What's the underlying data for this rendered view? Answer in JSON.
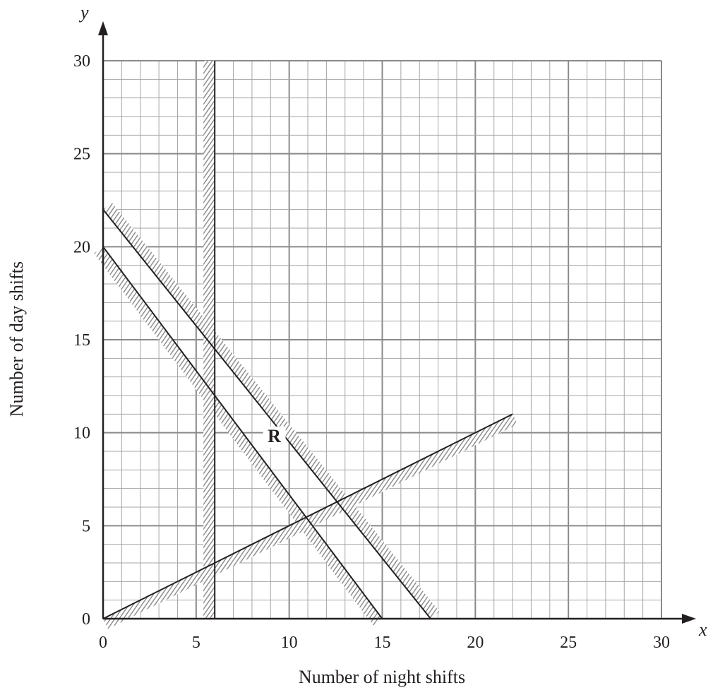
{
  "chart_data": {
    "type": "line",
    "title": "",
    "xlabel": "Number of night shifts",
    "ylabel": "Number of day shifts",
    "x_axis_var": "x",
    "y_axis_var": "y",
    "xlim": [
      0,
      30
    ],
    "ylim": [
      0,
      30
    ],
    "x_ticks": [
      0,
      5,
      10,
      15,
      20,
      25,
      30
    ],
    "y_ticks": [
      0,
      5,
      10,
      15,
      20,
      25,
      30
    ],
    "x_tick_labels": [
      "0",
      "5",
      "10",
      "15",
      "20",
      "25",
      "30"
    ],
    "y_tick_labels": [
      "0",
      "5",
      "10",
      "15",
      "20",
      "25",
      "30"
    ],
    "grid": {
      "major": 5,
      "minor": 1
    },
    "series": [
      {
        "points": [
          [
            6,
            0
          ],
          [
            6,
            30
          ]
        ],
        "shade": "left"
      },
      {
        "points": [
          [
            0,
            22
          ],
          [
            17.6,
            0
          ]
        ],
        "shade": "above"
      },
      {
        "points": [
          [
            0,
            20
          ],
          [
            15,
            0
          ]
        ],
        "shade": "below"
      },
      {
        "points": [
          [
            0,
            0
          ],
          [
            22,
            11
          ]
        ],
        "shade": "below"
      }
    ],
    "annotations": [
      {
        "text": "R",
        "x": 9.2,
        "y": 9.5
      }
    ],
    "colors": {
      "line": "#231f20",
      "grid_major": "#8a8a8a",
      "grid_minor": "#a6a6a6",
      "hatch": "#8f8f8f"
    }
  }
}
